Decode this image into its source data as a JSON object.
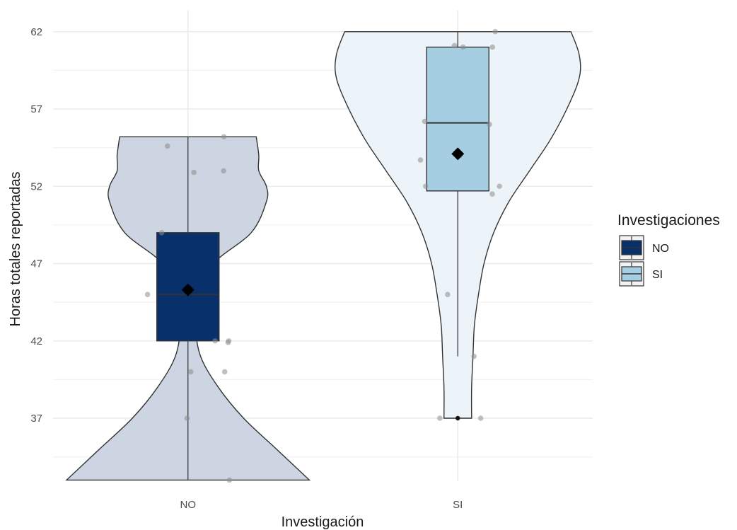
{
  "chart_data": {
    "type": "violin",
    "xlabel": "Investigación",
    "ylabel": "Horas totales reportadas",
    "ylim": [
      32,
      63.5
    ],
    "yticks": [
      37,
      42,
      47,
      52,
      57,
      62
    ],
    "grid": true,
    "legend": {
      "title": "Investigaciones",
      "placement": "right",
      "entries": [
        {
          "label": "NO",
          "color": "#08306b"
        },
        {
          "label": "SI",
          "color": "#a6cee3"
        }
      ]
    },
    "groups": [
      {
        "name": "NO",
        "violin_color": "#ccd5e1",
        "box_color": "#08306b",
        "box": {
          "min": 33,
          "q1": 42,
          "median": 45,
          "q3": 49,
          "max": 55.2
        },
        "mean": 45.3,
        "points": [
          55.2,
          54.6,
          53,
          52.9,
          49,
          45,
          42,
          42,
          41.9,
          40,
          40,
          37,
          33
        ],
        "density": [
          [
            33,
            0.48
          ],
          [
            35,
            0.35
          ],
          [
            37,
            0.22
          ],
          [
            39,
            0.12
          ],
          [
            41,
            0.05
          ],
          [
            43,
            0.03
          ],
          [
            45,
            0.04
          ],
          [
            47,
            0.1
          ],
          [
            49,
            0.25
          ],
          [
            51,
            0.31
          ],
          [
            52,
            0.31
          ],
          [
            53,
            0.28
          ],
          [
            54,
            0.28
          ],
          [
            55.2,
            0.27
          ]
        ]
      },
      {
        "name": "SI",
        "violin_color": "#edf4f9",
        "box_color": "#a6cee3",
        "box": {
          "min": 41,
          "q1": 51.7,
          "median": 56.1,
          "q3": 61,
          "max": 62
        },
        "outliers": [
          37
        ],
        "mean": 54.1,
        "points": [
          62,
          61.1,
          61,
          61,
          56.2,
          56,
          54,
          53.7,
          52,
          52,
          51.5,
          45,
          41,
          37,
          37
        ],
        "density": [
          [
            37,
            0.1
          ],
          [
            39,
            0.1
          ],
          [
            41,
            0.11
          ],
          [
            43,
            0.12
          ],
          [
            45,
            0.15
          ],
          [
            47,
            0.19
          ],
          [
            49,
            0.26
          ],
          [
            51,
            0.37
          ],
          [
            53,
            0.52
          ],
          [
            55,
            0.67
          ],
          [
            57,
            0.79
          ],
          [
            59,
            0.88
          ],
          [
            60.5,
            0.88
          ],
          [
            62,
            0.82
          ]
        ]
      }
    ]
  }
}
